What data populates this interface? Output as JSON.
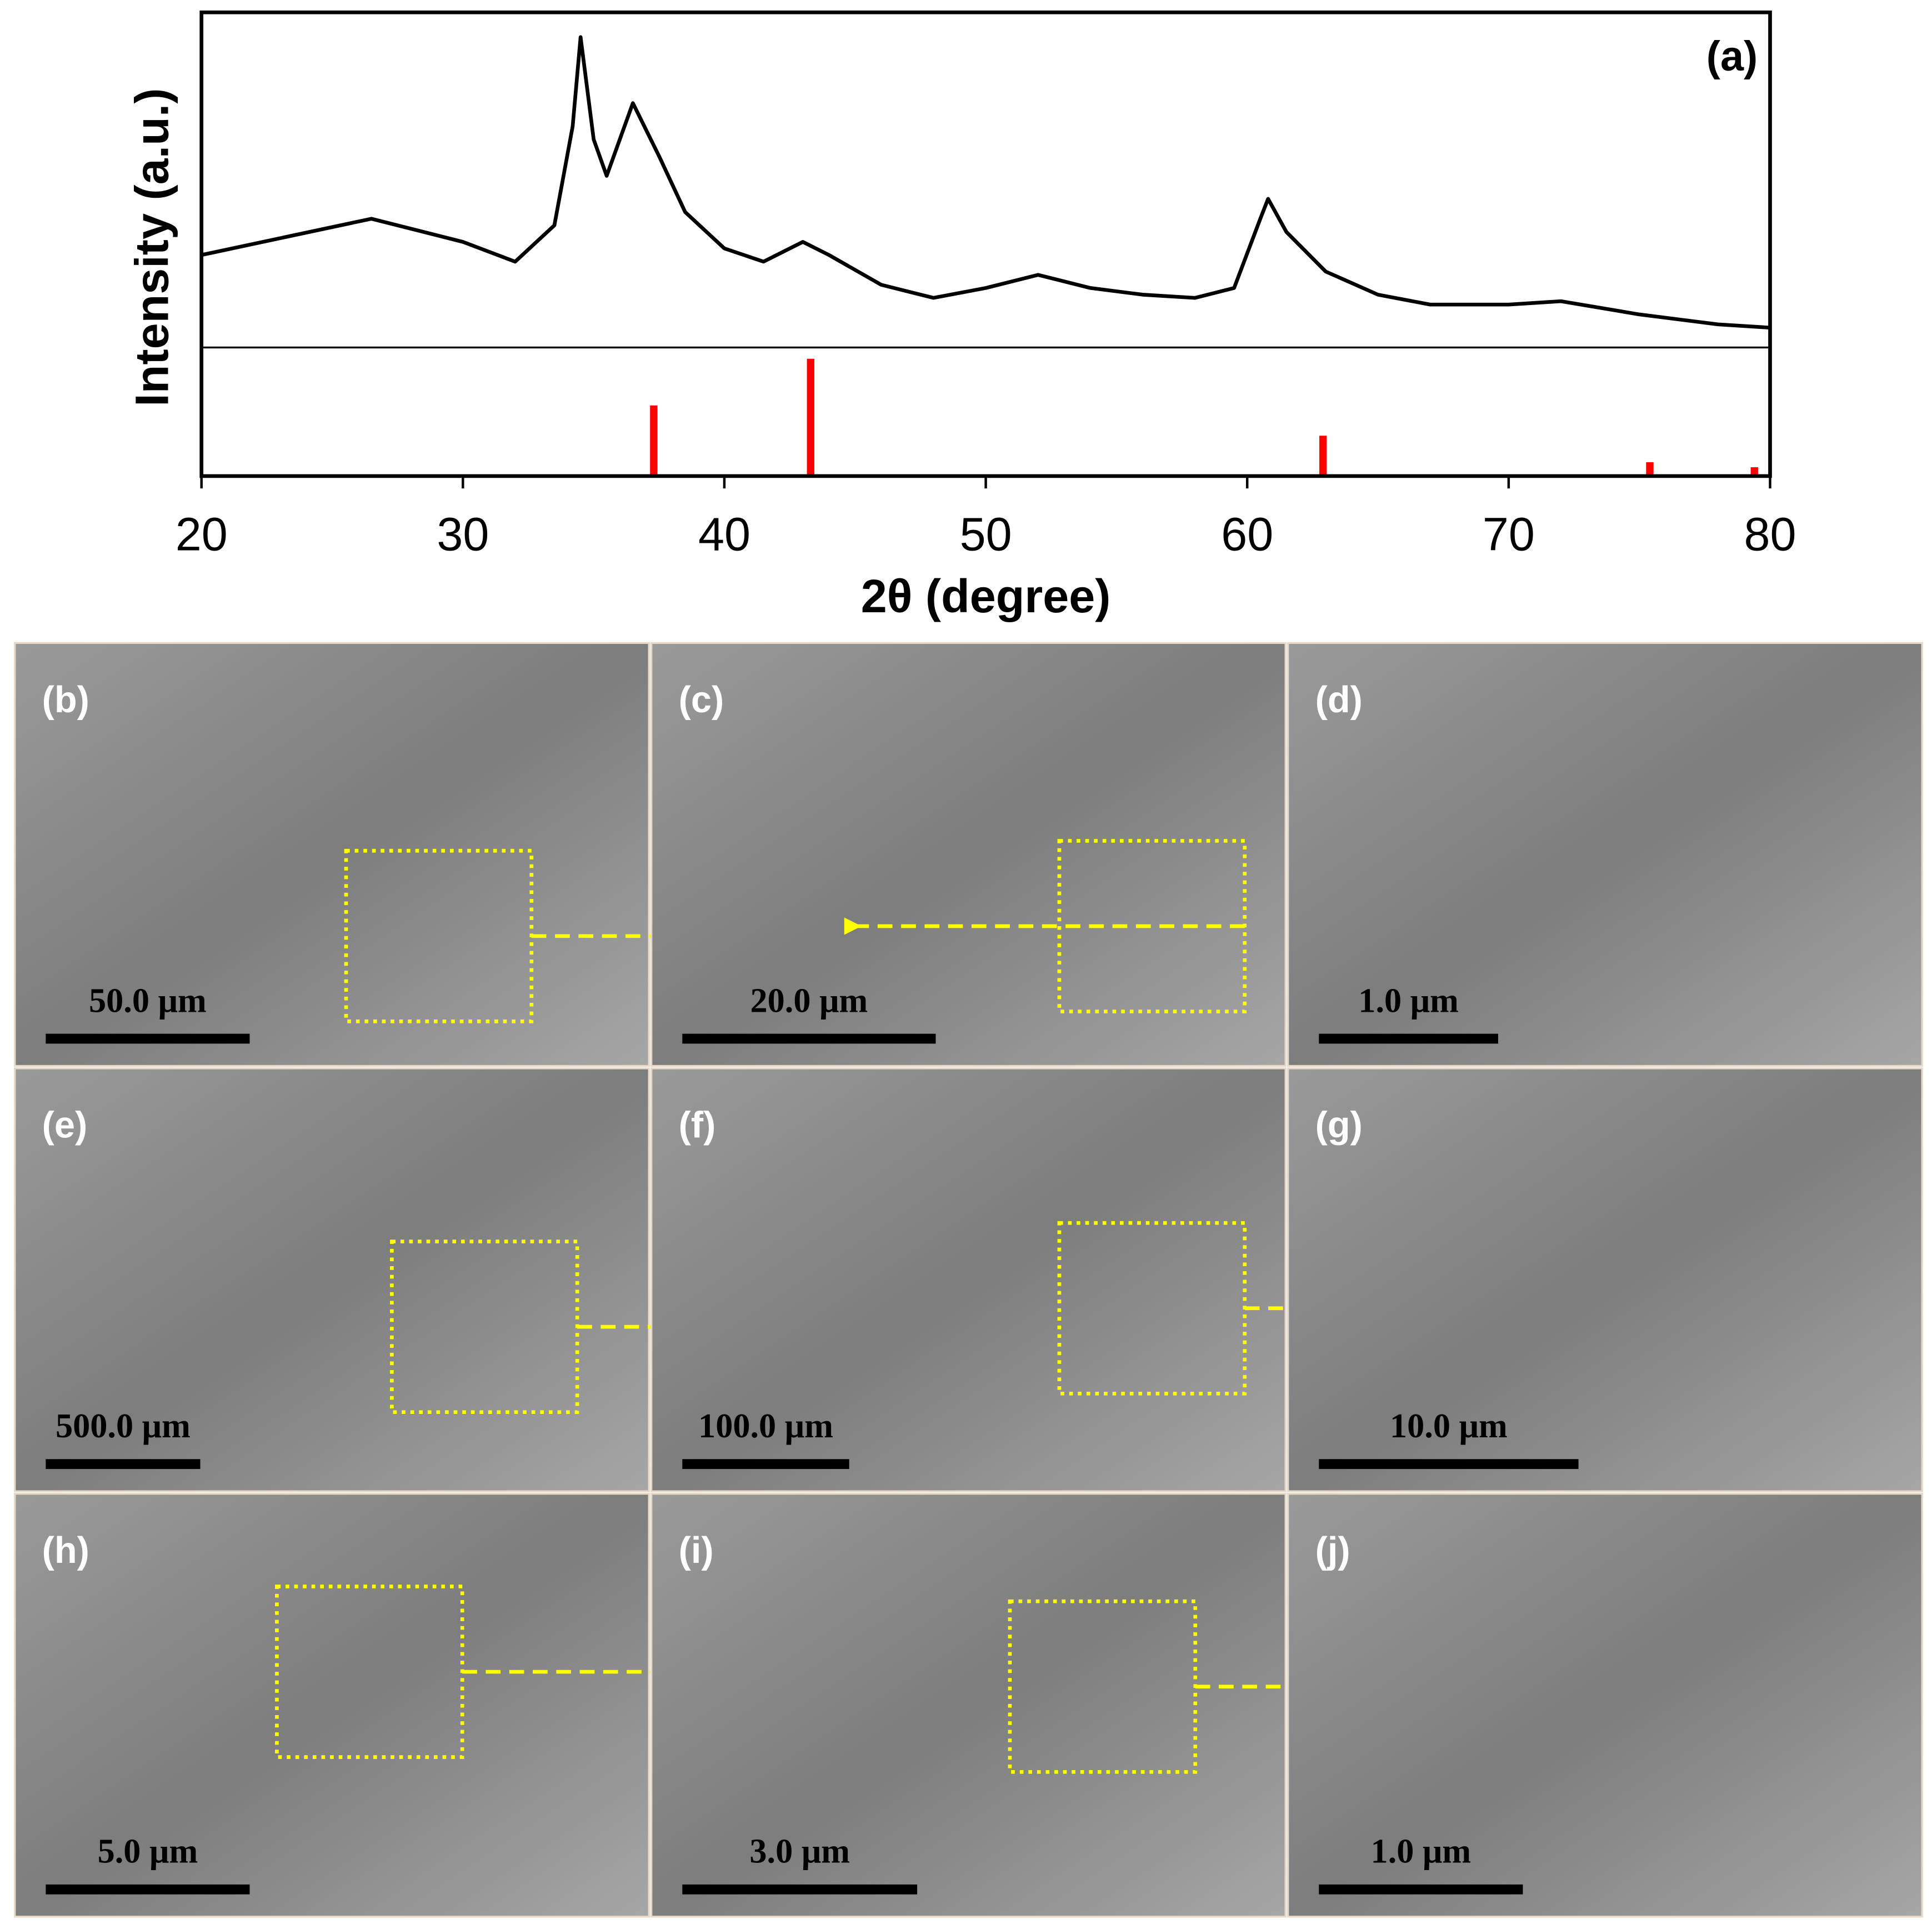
{
  "chart_data": [
    {
      "type": "line",
      "panel_label": "(a)",
      "ylabel": "Intensity (a.u.)",
      "color": "#000000",
      "xlim": [
        20,
        80
      ],
      "ylim": [
        0,
        100
      ],
      "x": [
        20,
        26.5,
        30,
        32,
        33.5,
        34.2,
        34.5,
        35,
        35.5,
        36.5,
        37.5,
        38.5,
        40,
        41.5,
        43,
        44,
        46,
        48,
        50,
        52,
        54,
        56,
        58,
        59.5,
        60.5,
        60.8,
        61.5,
        63,
        65,
        67,
        70,
        72,
        75,
        78,
        80
      ],
      "values": [
        28,
        39,
        32,
        26,
        37,
        67,
        94,
        63,
        52,
        74,
        58,
        41,
        30,
        26,
        32,
        28,
        19,
        15,
        18,
        22,
        18,
        16,
        15,
        18,
        39,
        45,
        35,
        23,
        16,
        13,
        13,
        14,
        10,
        7,
        6
      ]
    },
    {
      "type": "stick",
      "color": "#ff0000",
      "xlabel": "2θ (degree)",
      "xlim": [
        20,
        80
      ],
      "ylim": [
        0,
        100
      ],
      "xticks": [
        20,
        30,
        40,
        50,
        60,
        70,
        80
      ],
      "x": [
        37.3,
        43.3,
        62.9,
        75.4,
        79.4
      ],
      "values": [
        56,
        93,
        32,
        11,
        7
      ]
    }
  ],
  "panels": [
    {
      "label": "(b)",
      "scale": "50.0 μm"
    },
    {
      "label": "(c)",
      "scale": "20.0 μm"
    },
    {
      "label": "(d)",
      "scale": "1.0 μm"
    },
    {
      "label": "(e)",
      "scale": "500.0 μm"
    },
    {
      "label": "(f)",
      "scale": "100.0 μm"
    },
    {
      "label": "(g)",
      "scale": "10.0 μm"
    },
    {
      "label": "(h)",
      "scale": "5.0 μm"
    },
    {
      "label": "(i)",
      "scale": "3.0 μm"
    },
    {
      "label": "(j)",
      "scale": "1.0 μm"
    }
  ]
}
